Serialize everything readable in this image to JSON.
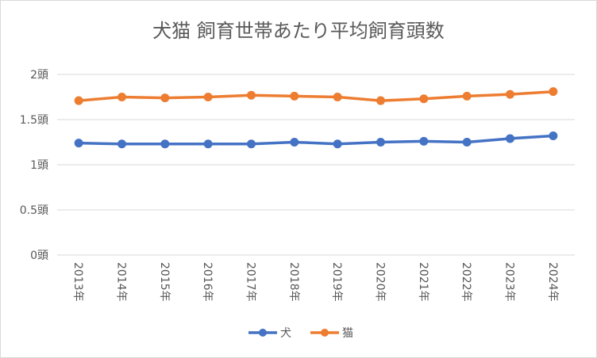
{
  "chart_data": {
    "type": "line",
    "title": "犬猫 飼育世帯あたり平均飼育頭数",
    "categories": [
      "2013年",
      "2014年",
      "2015年",
      "2016年",
      "2017年",
      "2018年",
      "2019年",
      "2020年",
      "2021年",
      "2022年",
      "2023年",
      "2024年"
    ],
    "series": [
      {
        "name": "犬",
        "color": "#4472c4",
        "values": [
          1.24,
          1.23,
          1.23,
          1.23,
          1.23,
          1.25,
          1.23,
          1.25,
          1.26,
          1.25,
          1.29,
          1.32
        ]
      },
      {
        "name": "猫",
        "color": "#ed7d31",
        "values": [
          1.71,
          1.75,
          1.74,
          1.75,
          1.77,
          1.76,
          1.75,
          1.71,
          1.73,
          1.76,
          1.78,
          1.81
        ]
      }
    ],
    "yticks": [
      "0頭",
      "0.5頭",
      "1頭",
      "1.5頭",
      "2頭"
    ],
    "ylim": [
      0,
      2
    ],
    "grid": true,
    "legend": "bottom"
  }
}
